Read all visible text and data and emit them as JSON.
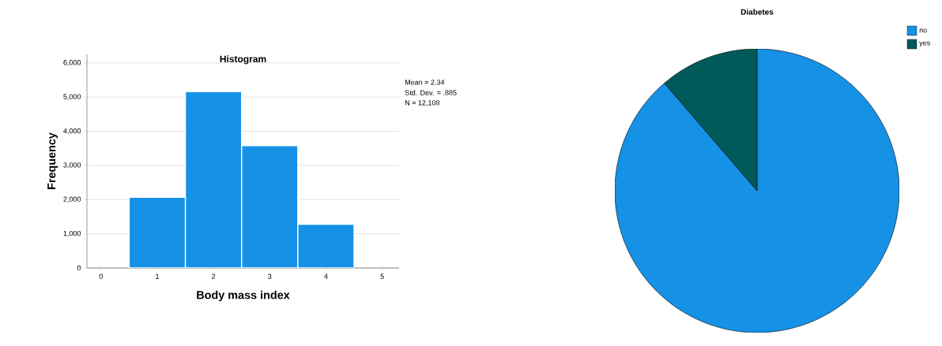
{
  "chart_data": [
    {
      "type": "histogram",
      "title": "Histogram",
      "xlabel": "Body mass index",
      "ylabel": "Frequency",
      "bins": [
        0.5,
        1.5,
        2.5,
        3.5,
        4.5
      ],
      "values": [
        2070,
        5160,
        3580,
        1280
      ],
      "color": "#1591e6",
      "xlim": [
        -0.25,
        5.3
      ],
      "xticks": [
        0,
        1,
        2,
        3,
        4,
        5
      ],
      "ylim": [
        0,
        6250
      ],
      "yticks": [
        {
          "value": 0,
          "label": "0"
        },
        {
          "value": 1000,
          "label": "1,000"
        },
        {
          "value": 2000,
          "label": "2,000"
        },
        {
          "value": 3000,
          "label": "3,000"
        },
        {
          "value": 4000,
          "label": "4,000"
        },
        {
          "value": 5000,
          "label": "5,000"
        },
        {
          "value": 6000,
          "label": "6,000"
        }
      ],
      "grid": "y",
      "annotations": [
        "Mean = 2.34",
        "Std. Dev. = .885",
        "N = 12,108"
      ]
    },
    {
      "type": "pie",
      "title": "Diabetes",
      "categories": [
        "no",
        "yes"
      ],
      "values": [
        88.7,
        11.3
      ],
      "colors": [
        "#1591e6",
        "#005a5a"
      ],
      "legend": "top right"
    }
  ]
}
